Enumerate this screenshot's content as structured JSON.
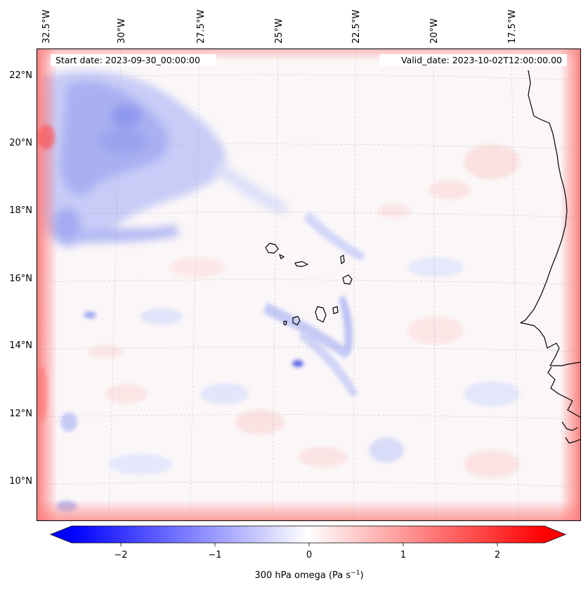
{
  "map": {
    "start_label": "Start date: 2023-09-30_00:00:00",
    "valid_label": "Valid_date: 2023-10-02T12:00:00.00",
    "lon_ticks": [
      "32.5°W",
      "30°W",
      "27.5°W",
      "25°W",
      "22.5°W",
      "20°W",
      "17.5°W"
    ],
    "lat_ticks": [
      "22°N",
      "20°N",
      "18°N",
      "16°N",
      "14°N",
      "12°N",
      "10°N"
    ],
    "gridlines": "dashed",
    "coastline_color": "#000000"
  },
  "colorbar": {
    "label_main": "300 hPa omega (Pa s",
    "label_exp": "−1",
    "label_close": ")",
    "ticks": [
      "−2",
      "−1",
      "0",
      "1",
      "2"
    ],
    "range": [
      -2.6,
      2.6
    ],
    "colormap": "bwr",
    "negative_color": "#0000ff",
    "positive_color": "#ff0000",
    "extend": "both"
  }
}
